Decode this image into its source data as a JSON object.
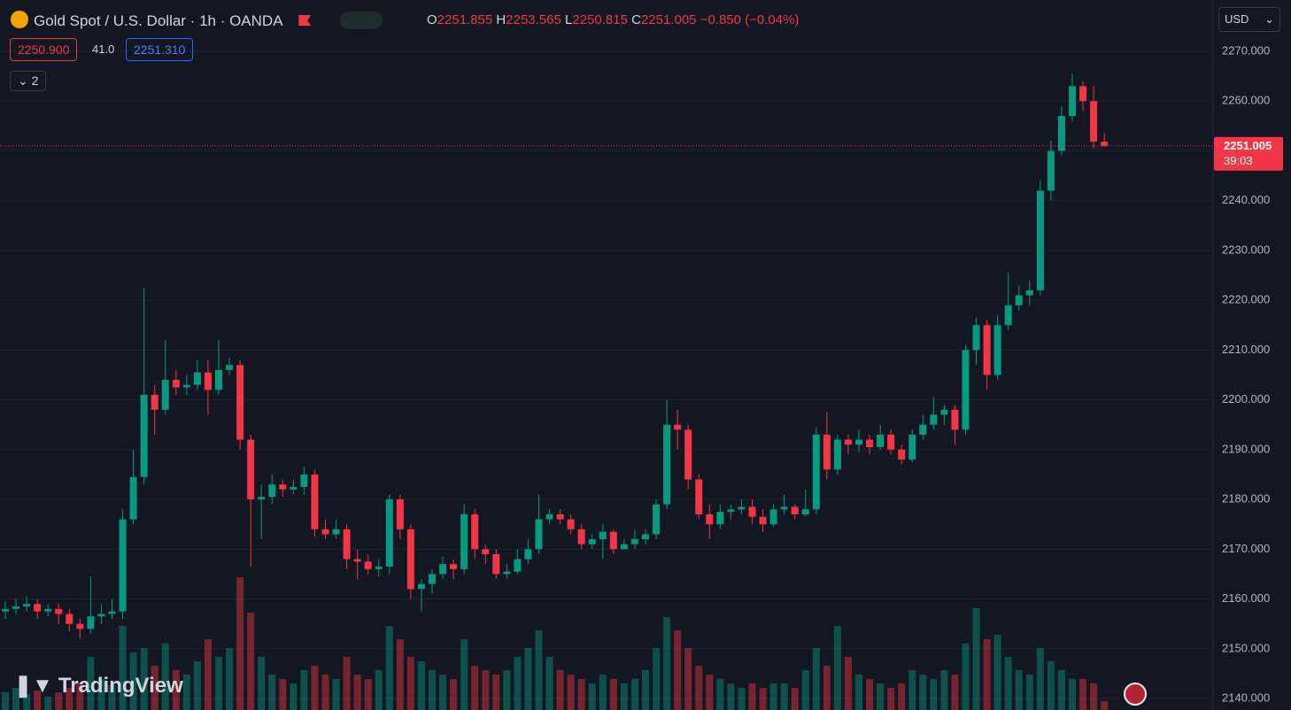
{
  "header": {
    "symbol": "Gold Spot / U.S. Dollar · 1h · OANDA",
    "ohlc_labels": [
      "O",
      "H",
      "L",
      "C"
    ],
    "change": "−0.850 (−0.04%)",
    "sell": "2250.900",
    "spread": "41.0",
    "buy": "2251.310",
    "indicators": "2",
    "currency": "USD",
    "countdown": "39:03",
    "brand": "TradingView"
  },
  "chart_data": {
    "type": "candlestick",
    "up_color": "#089981",
    "down_color": "#f23645",
    "grid": true,
    "ylim": [
      2137.7,
      2280.3
    ],
    "yticks": [
      {
        "value": 2140,
        "label": "2140.000"
      },
      {
        "value": 2150,
        "label": "2150.000"
      },
      {
        "value": 2160,
        "label": "2160.000"
      },
      {
        "value": 2170,
        "label": "2170.000"
      },
      {
        "value": 2180,
        "label": "2180.000"
      },
      {
        "value": 2190,
        "label": "2190.000"
      },
      {
        "value": 2200,
        "label": "2200.000"
      },
      {
        "value": 2210,
        "label": "2210.000"
      },
      {
        "value": 2220,
        "label": "2220.000"
      },
      {
        "value": 2230,
        "label": "2230.000"
      },
      {
        "value": 2240,
        "label": "2240.000"
      },
      {
        "value": 2250,
        "label": "2250.000"
      },
      {
        "value": 2260,
        "label": "2260.000"
      },
      {
        "value": 2270,
        "label": "2270.000"
      }
    ],
    "open": [
      2157.5,
      2158,
      2158.5,
      2159,
      2157.5,
      2158,
      2157,
      2155,
      2154,
      2156.5,
      2157,
      2157.5,
      2176,
      2184.5,
      2201,
      2198,
      2204,
      2202.5,
      2203,
      2205.5,
      2202,
      2206,
      2207,
      2192,
      2180,
      2180.5,
      2183,
      2182,
      2182.5,
      2185,
      2174,
      2173,
      2174,
      2168,
      2167.5,
      2166,
      2166.5,
      2180,
      2174,
      2162,
      2163,
      2165,
      2167,
      2166,
      2177,
      2170,
      2169,
      2165,
      2165.5,
      2168,
      2170,
      2176,
      2177,
      2176,
      2174,
      2171,
      2172,
      2173.5,
      2170,
      2171,
      2172,
      2173,
      2179,
      2195,
      2194,
      2184,
      2177,
      2175,
      2177.5,
      2178,
      2178.5,
      2176.5,
      2175,
      2178,
      2178.5,
      2177,
      2178,
      2193,
      2186,
      2192,
      2191,
      2192,
      2190.5,
      2193,
      2190,
      2188,
      2193,
      2195,
      2197,
      2198,
      2194,
      2210,
      2215,
      2205,
      2215,
      2219,
      2221,
      2222,
      2242,
      2250,
      2257,
      2263,
      2260,
      2251.855
    ],
    "high": [
      2159.5,
      2160,
      2160.5,
      2160,
      2159,
      2159,
      2158,
      2156,
      2164.5,
      2159,
      2160,
      2178,
      2190,
      2222.5,
      2203,
      2212,
      2206,
      2205,
      2208,
      2208,
      2212,
      2208.5,
      2208,
      2193,
      2183,
      2185,
      2184,
      2184,
      2186.5,
      2186,
      2176,
      2176,
      2175,
      2170,
      2169,
      2168,
      2181,
      2181,
      2175,
      2164,
      2166,
      2168.5,
      2168,
      2179,
      2178,
      2171,
      2170,
      2167,
      2170,
      2172,
      2181,
      2178,
      2178,
      2177,
      2175,
      2173,
      2175,
      2174,
      2172,
      2174,
      2174,
      2180,
      2200,
      2198,
      2195,
      2185,
      2179,
      2179,
      2179,
      2180,
      2180,
      2178,
      2179,
      2181,
      2179,
      2182,
      2194.5,
      2197.5,
      2193,
      2193,
      2194,
      2193,
      2195,
      2194,
      2191,
      2194,
      2197,
      2200.5,
      2199,
      2199,
      2211,
      2216.5,
      2216,
      2217,
      2225.5,
      2223,
      2224,
      2244,
      2252,
      2259,
      2265.5,
      2264,
      2263,
      2253.565
    ],
    "low": [
      2156,
      2157,
      2157.5,
      2156,
      2156.5,
      2155,
      2153.5,
      2152,
      2153,
      2155,
      2156,
      2156,
      2175,
      2183,
      2193,
      2197,
      2201,
      2201,
      2202,
      2197,
      2201,
      2205,
      2190,
      2166.5,
      2172,
      2179,
      2180.5,
      2181,
      2181,
      2172.5,
      2172,
      2172,
      2166,
      2164,
      2165,
      2164.5,
      2165,
      2172,
      2160,
      2157.5,
      2161,
      2164,
      2164,
      2165,
      2168,
      2167,
      2164,
      2164,
      2165,
      2167,
      2169,
      2175,
      2175,
      2173,
      2170,
      2170,
      2168,
      2169,
      2170,
      2170,
      2171,
      2172,
      2178,
      2190,
      2182,
      2176,
      2172,
      2174,
      2176,
      2177,
      2175,
      2173.5,
      2174.5,
      2177,
      2176,
      2176.5,
      2177,
      2184,
      2185,
      2189,
      2189.5,
      2189,
      2190,
      2189,
      2187,
      2187.5,
      2192,
      2194,
      2195,
      2191,
      2193,
      2207,
      2202,
      2204,
      2214,
      2218,
      2219,
      2221,
      2240,
      2249,
      2256,
      2258,
      2250.5,
      2250.815
    ],
    "close": [
      2158,
      2158.5,
      2159,
      2157.5,
      2158,
      2157,
      2155,
      2154,
      2156.5,
      2157,
      2157.5,
      2176,
      2184.5,
      2201,
      2198,
      2204,
      2202.5,
      2203,
      2205.5,
      2202,
      2206,
      2207,
      2192,
      2180,
      2180.5,
      2183,
      2182,
      2182.5,
      2185,
      2174,
      2173,
      2174,
      2168,
      2167.5,
      2166,
      2166.5,
      2180,
      2174,
      2162,
      2163,
      2165,
      2167,
      2166,
      2177,
      2170,
      2169,
      2165,
      2165.5,
      2168,
      2170,
      2176,
      2177,
      2176,
      2174,
      2171,
      2172,
      2173.5,
      2170,
      2171,
      2172,
      2173,
      2179,
      2195,
      2194,
      2184,
      2177,
      2175,
      2177.5,
      2178,
      2178.5,
      2176.5,
      2175,
      2178,
      2178.5,
      2177,
      2178,
      2193,
      2186,
      2192,
      2191,
      2192,
      2190.5,
      2193,
      2190,
      2188,
      2193,
      2195,
      2197,
      2198,
      2194,
      2210,
      2215,
      2205,
      2215,
      2219,
      2221,
      2222,
      2242,
      2250,
      2257,
      2263,
      2260,
      2251.855,
      2251.005
    ],
    "volume": [
      20,
      25,
      18,
      22,
      15,
      20,
      25,
      30,
      60,
      35,
      28,
      95,
      65,
      70,
      50,
      75,
      45,
      40,
      55,
      80,
      60,
      70,
      150,
      110,
      60,
      40,
      35,
      30,
      45,
      50,
      40,
      35,
      60,
      40,
      35,
      45,
      95,
      80,
      60,
      55,
      45,
      40,
      35,
      80,
      50,
      45,
      40,
      45,
      60,
      70,
      90,
      60,
      45,
      40,
      35,
      30,
      40,
      35,
      30,
      35,
      45,
      70,
      105,
      90,
      70,
      50,
      40,
      35,
      30,
      25,
      30,
      25,
      30,
      30,
      25,
      45,
      70,
      50,
      95,
      60,
      40,
      35,
      30,
      25,
      30,
      45,
      40,
      35,
      45,
      40,
      75,
      115,
      80,
      85,
      60,
      45,
      40,
      70,
      55,
      45,
      35,
      35,
      30,
      10
    ]
  }
}
